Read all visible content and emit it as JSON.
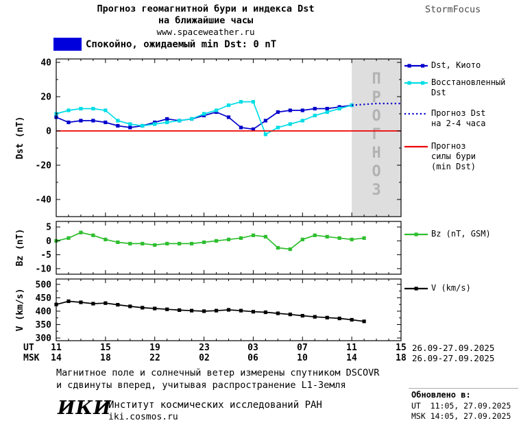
{
  "header": {
    "title_line1": "Прогноз геомагнитной бури и индекса Dst",
    "title_line2": "на ближайшие часы",
    "title_line3": "www.spaceweather.ru",
    "brand": "StormFocus"
  },
  "status_banner": {
    "swatch_color": "#0000dd",
    "text": "Спокойно, ожидаемый min Dst: 0 nT"
  },
  "chart_data": [
    {
      "type": "line",
      "ylabel": "Dst (nT)",
      "ylim": [
        -50,
        42
      ],
      "yticks": [
        40,
        20,
        0,
        -20,
        -40
      ],
      "xlim": [
        0,
        28
      ],
      "forecast_region": [
        24,
        28
      ],
      "forecast_watermark": "ПРОГНОЗ",
      "series": [
        {
          "name": "Dst, Киото",
          "color": "#0000cc",
          "style": "solid",
          "marker": "square",
          "x": [
            0,
            1,
            2,
            3,
            4,
            5,
            6,
            7,
            8,
            9,
            10,
            11,
            12,
            13,
            14,
            15,
            16,
            17,
            18,
            19,
            20,
            21,
            22,
            23,
            24
          ],
          "values": [
            8,
            5,
            6,
            6,
            5,
            3,
            2,
            3,
            5,
            7,
            6,
            7,
            9,
            11,
            8,
            2,
            1,
            6,
            11,
            12,
            12,
            13,
            13,
            14,
            15
          ]
        },
        {
          "name": "Восстановленный Dst",
          "color": "#00dde6",
          "style": "solid",
          "marker": "square",
          "x": [
            0,
            1,
            2,
            3,
            4,
            5,
            6,
            7,
            8,
            9,
            10,
            11,
            12,
            13,
            14,
            15,
            16,
            17,
            18,
            19,
            20,
            21,
            22,
            23,
            24
          ],
          "values": [
            10,
            12,
            13,
            13,
            12,
            6,
            4,
            3,
            4,
            5,
            6,
            7,
            10,
            12,
            15,
            17,
            17,
            -2,
            2,
            4,
            6,
            9,
            11,
            13,
            15
          ]
        },
        {
          "name": "Прогноз Dst на 2-4 часа",
          "color": "#0000cc",
          "style": "dotted",
          "marker": null,
          "x": [
            24,
            25,
            26,
            27,
            28
          ],
          "values": [
            15,
            15.5,
            16,
            16,
            16
          ]
        },
        {
          "name": "Прогноз силы бури (min Dst)",
          "color": "#ee0000",
          "style": "solid",
          "marker": null,
          "x": [
            0,
            28
          ],
          "values": [
            0,
            0
          ]
        }
      ]
    },
    {
      "type": "line",
      "ylabel": "Bz (nT)",
      "ylim": [
        -12,
        7
      ],
      "yticks": [
        5,
        0,
        -5,
        -10
      ],
      "xlim": [
        0,
        28
      ],
      "series": [
        {
          "name": "Bz (nT, GSM)",
          "color": "#2ebe2e",
          "style": "solid",
          "marker": "square",
          "x": [
            0,
            1,
            2,
            3,
            4,
            5,
            6,
            7,
            8,
            9,
            10,
            11,
            12,
            13,
            14,
            15,
            16,
            17,
            18,
            19,
            20,
            21,
            22,
            23,
            24,
            25
          ],
          "values": [
            0,
            1,
            3,
            2,
            0.5,
            -0.5,
            -1,
            -1,
            -1.5,
            -1,
            -1,
            -1,
            -0.5,
            0,
            0.5,
            1,
            2,
            1.5,
            -2.5,
            -3,
            0.5,
            2,
            1.5,
            1,
            0.5,
            1
          ]
        }
      ]
    },
    {
      "type": "line",
      "ylabel": "V (km/s)",
      "ylim": [
        290,
        520
      ],
      "yticks": [
        500,
        450,
        400,
        350,
        300
      ],
      "xlim": [
        0,
        28
      ],
      "series": [
        {
          "name": "V (km/s)",
          "color": "#000000",
          "style": "solid",
          "marker": "square",
          "x": [
            0,
            1,
            2,
            3,
            4,
            5,
            6,
            7,
            8,
            9,
            10,
            11,
            12,
            13,
            14,
            15,
            16,
            17,
            18,
            19,
            20,
            21,
            22,
            23,
            24,
            25
          ],
          "values": [
            425,
            437,
            433,
            428,
            430,
            424,
            418,
            413,
            410,
            407,
            404,
            402,
            400,
            402,
            405,
            402,
            398,
            396,
            392,
            388,
            383,
            379,
            376,
            373,
            368,
            362
          ]
        }
      ]
    }
  ],
  "xaxis": {
    "ut_label": "UT",
    "msk_label": "MSK",
    "ut_ticks": [
      "11",
      "15",
      "19",
      "23",
      "03",
      "07",
      "11",
      "15"
    ],
    "msk_ticks": [
      "14",
      "18",
      "22",
      "02",
      "06",
      "10",
      "14",
      "18"
    ],
    "ut_date": "26.09-27.09.2025",
    "msk_date": "26.09-27.09.2025"
  },
  "footer": {
    "note_line1": "Магнитное поле и солнечный ветер измерены спутником DSCOVR",
    "note_line2": "и сдвинуты вперед, учитывая распространение L1-Земля",
    "logo": "ИКИ",
    "institute": "Институт космических исследований РАН",
    "site": "iki.cosmos.ru",
    "updated_label": "Обновлено в:",
    "updated_ut": "UT  11:05, 27.09.2025",
    "updated_msk": "MSK 14:05, 27.09.2025"
  }
}
